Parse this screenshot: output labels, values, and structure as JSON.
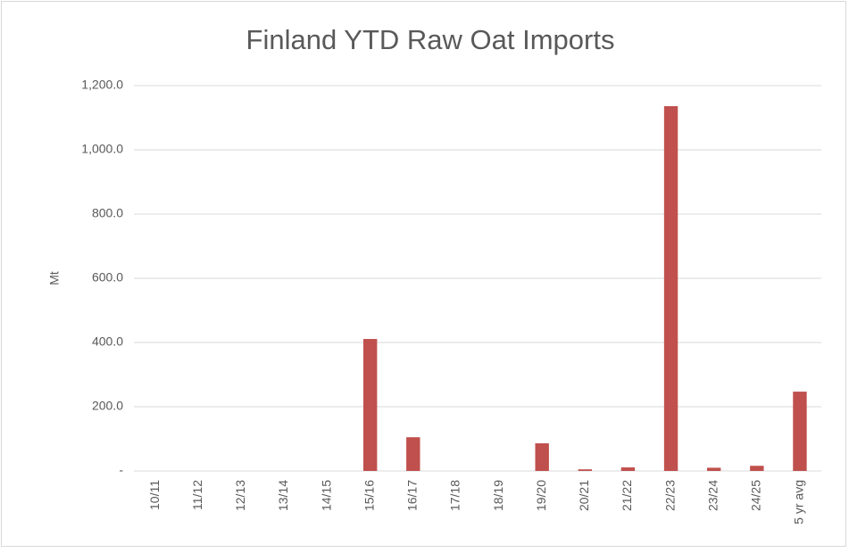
{
  "chart_data": {
    "type": "bar",
    "title": "Finland YTD Raw Oat Imports",
    "y_label": "Mt",
    "categories": [
      "10/11",
      "11/12",
      "12/13",
      "13/14",
      "14/15",
      "15/16",
      "16/17",
      "17/18",
      "18/19",
      "19/20",
      "20/21",
      "21/22",
      "22/23",
      "23/24",
      "24/25",
      "5 yr avg"
    ],
    "values": [
      0,
      0,
      0,
      0,
      0,
      411,
      105,
      0,
      0,
      86,
      5,
      11,
      1136,
      10,
      16,
      247
    ],
    "color": "#c0504d",
    "ylim": [
      0,
      1200
    ],
    "yticks": [
      {
        "value": 0,
        "label": "-"
      },
      {
        "value": 200,
        "label": "200.0"
      },
      {
        "value": 400,
        "label": "400.0"
      },
      {
        "value": 600,
        "label": "600.0"
      },
      {
        "value": 800,
        "label": "800.0"
      },
      {
        "value": 1000,
        "label": "1,000.0"
      },
      {
        "value": 1200,
        "label": "1,200.0"
      }
    ],
    "grid": true
  }
}
